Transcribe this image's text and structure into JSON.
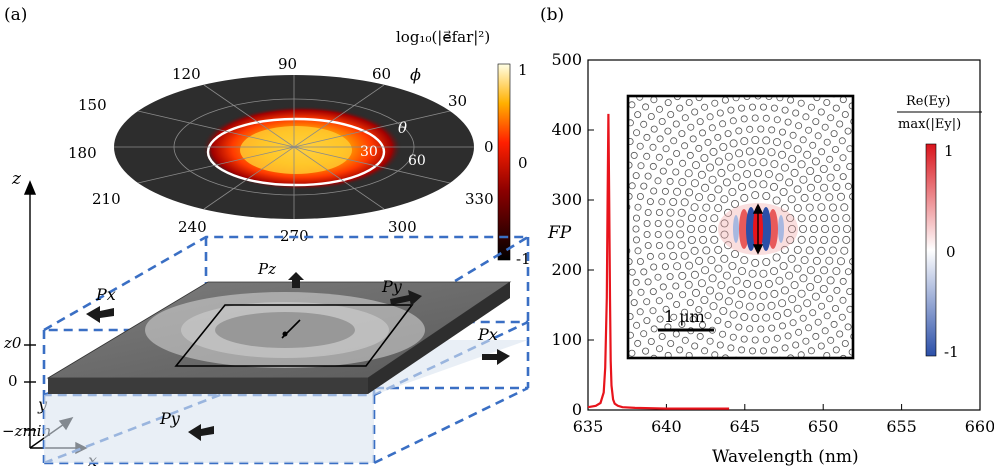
{
  "panel_a": {
    "label": "(a)",
    "colorbar_title": "log₁₀(|e⃗far|²)",
    "phi_symbol": "ϕ",
    "theta_symbol": "θ",
    "phi_ticks": [
      "90",
      "60",
      "30",
      "0",
      "330",
      "300",
      "270",
      "240",
      "210",
      "180",
      "150",
      "120"
    ],
    "theta_ticks": [
      "30",
      "60"
    ],
    "colorbar_ticks": [
      "1",
      "0",
      "-1"
    ],
    "axis_z": "z",
    "axis_y": "y",
    "axis_x": "x",
    "tick_z0": "z0",
    "tick_zero": "0",
    "tick_zmin": "−zmin",
    "flux_labels": {
      "pz": "Pz",
      "px_left": "Px",
      "px_right": "Px",
      "py_top": "Py",
      "py_bottom": "Py"
    }
  },
  "panel_b": {
    "label": "(b)",
    "ylabel": "FP",
    "xlabel": "Wavelength (nm)",
    "inset_colorbar_title_num": "Re(Ey)",
    "inset_colorbar_title_den": "max(|Ey|)",
    "inset_colorbar_ticks": [
      "1",
      "0",
      "-1"
    ],
    "scale_bar": "1 μm"
  },
  "chart_data": {
    "type": "line",
    "xlabel": "Wavelength (nm)",
    "ylabel": "FP",
    "xlim": [
      635,
      660
    ],
    "ylim": [
      0,
      500
    ],
    "x_ticks": [
      635,
      640,
      645,
      650,
      655,
      660
    ],
    "y_ticks": [
      0,
      100,
      200,
      300,
      400,
      500
    ],
    "series": [
      {
        "color": "#e8141c",
        "x": [
          635.0,
          635.5,
          635.8,
          636.0,
          636.1,
          636.2,
          636.25,
          636.3,
          636.35,
          636.4,
          636.45,
          636.5,
          636.6,
          636.7,
          636.9,
          637.2,
          638.0,
          640.0,
          644.0
        ],
        "y": [
          4,
          6,
          10,
          25,
          60,
          160,
          300,
          423,
          300,
          160,
          70,
          35,
          15,
          9,
          6,
          4,
          3,
          2,
          2
        ]
      }
    ]
  },
  "colors": {
    "dashed_box": "#3a6fc4",
    "curve": "#e8141c"
  }
}
